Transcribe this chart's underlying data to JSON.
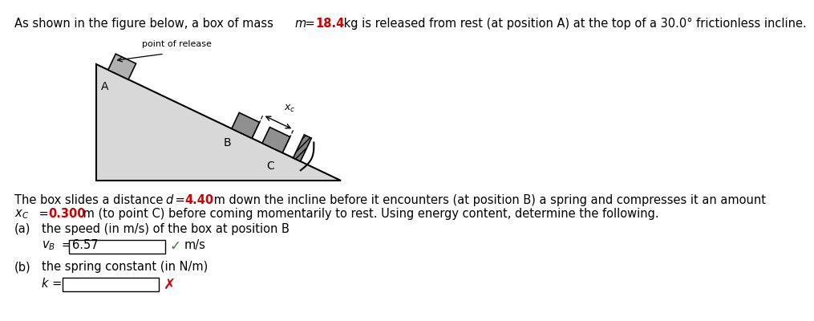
{
  "bg_color": "#ffffff",
  "mass_color": "#cc0000",
  "highlight_color": "#cc0000",
  "checkmark_color": "#228B22",
  "cross_color": "#cc0000",
  "incline_color": "#d8d8d8",
  "incline_edge_color": "#000000",
  "box_a_color": "#b0b0b0",
  "box_b_color": "#909090",
  "wall_color": "#707070",
  "point_of_release": "point of release",
  "label_A": "A",
  "label_B": "B",
  "label_C": "C",
  "vB_value": "6.57",
  "title_line": "As shown in the figure below, a box of mass m = 18.4 kg is released from rest (at position A) at the top of a 30.0° frictionless incline.",
  "body_line1": "The box slides a distance d = 4.40 m down the incline before it encounters (at position B) a spring and compresses it an amount",
  "body_line2": "x_C = 0.300 m (to point C) before coming momentarily to rest. Using energy content, determine the following.",
  "part_a": "(a)  the speed (in m/s) of the box at position B",
  "part_b": "(b)  the spring constant (in N/m)"
}
